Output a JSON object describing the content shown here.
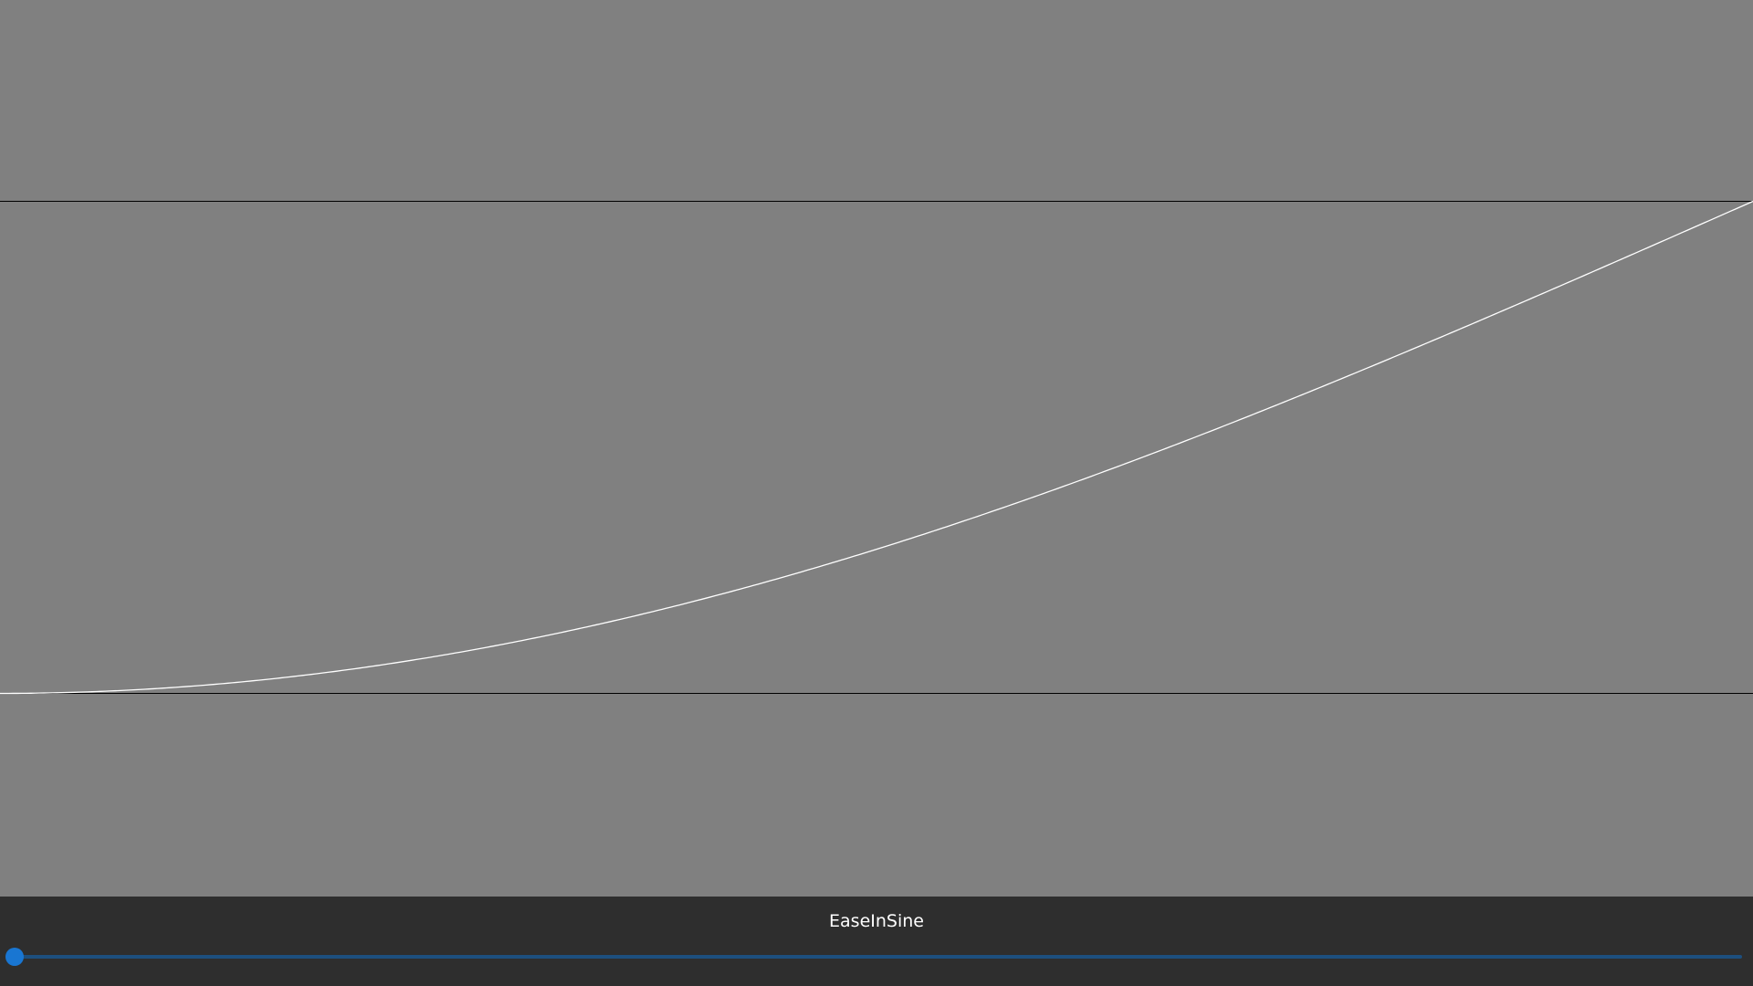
{
  "colors": {
    "plot_background": "#808080",
    "boundary_line": "#000000",
    "curve": "#ffffff",
    "control_bar_background": "#2e2e2e",
    "label_text": "#ffffff",
    "slider_track": "#1d4f7e",
    "slider_accent": "#1976d2"
  },
  "curve": {
    "easing_function": "easeInSine",
    "t_range": [
      0,
      1
    ],
    "value_range": [
      0,
      1
    ]
  },
  "control_bar": {
    "easing_label": "EaseInSine",
    "slider": {
      "value": 0,
      "min": 0,
      "max": 1
    }
  }
}
